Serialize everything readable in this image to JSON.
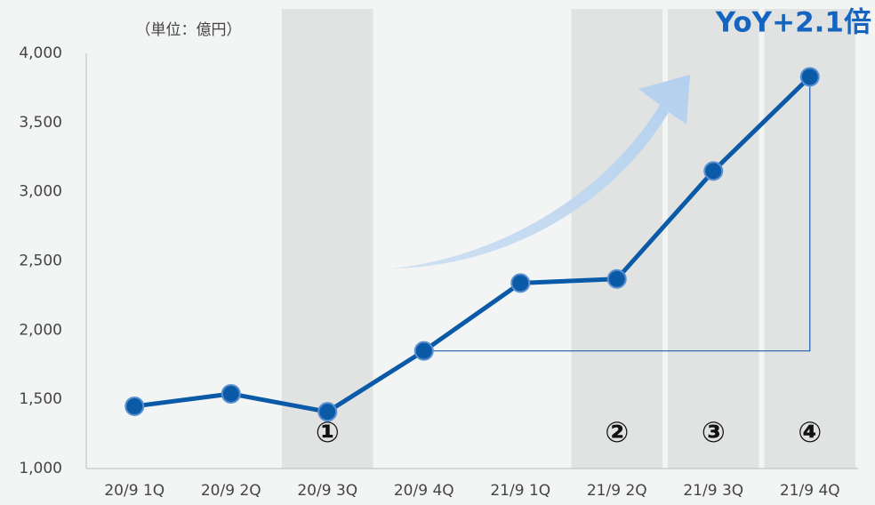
{
  "chart_data": {
    "type": "line",
    "unit_label": "（単位：億円）",
    "categories": [
      "20/9 1Q",
      "20/9 2Q",
      "20/9 3Q",
      "20/9 4Q",
      "21/9 1Q",
      "21/9 2Q",
      "21/9 3Q",
      "21/9 4Q"
    ],
    "values": [
      1450,
      1540,
      1410,
      1850,
      2340,
      2370,
      3150,
      3830
    ],
    "color": "#0b5aa8",
    "ylim": [
      1000,
      4000
    ],
    "yticks": [
      {
        "value": 1000,
        "label": "1,000"
      },
      {
        "value": 1500,
        "label": "1,500"
      },
      {
        "value": 2000,
        "label": "2,000"
      },
      {
        "value": 2500,
        "label": "2,500"
      },
      {
        "value": 3000,
        "label": "3,000"
      },
      {
        "value": 3500,
        "label": "3,500"
      },
      {
        "value": 4000,
        "label": "4,000"
      }
    ],
    "grid": false,
    "highlights": [
      {
        "category": "20/9 3Q",
        "label": "①"
      },
      {
        "category": "21/9 2Q",
        "label": "②"
      },
      {
        "category": "21/9 3Q",
        "label": "③"
      },
      {
        "category": "21/9 4Q",
        "label": "④"
      }
    ],
    "comparison": {
      "from": "20/9 4Q",
      "to": "21/9 4Q",
      "label": "YoY+2.1倍"
    }
  }
}
